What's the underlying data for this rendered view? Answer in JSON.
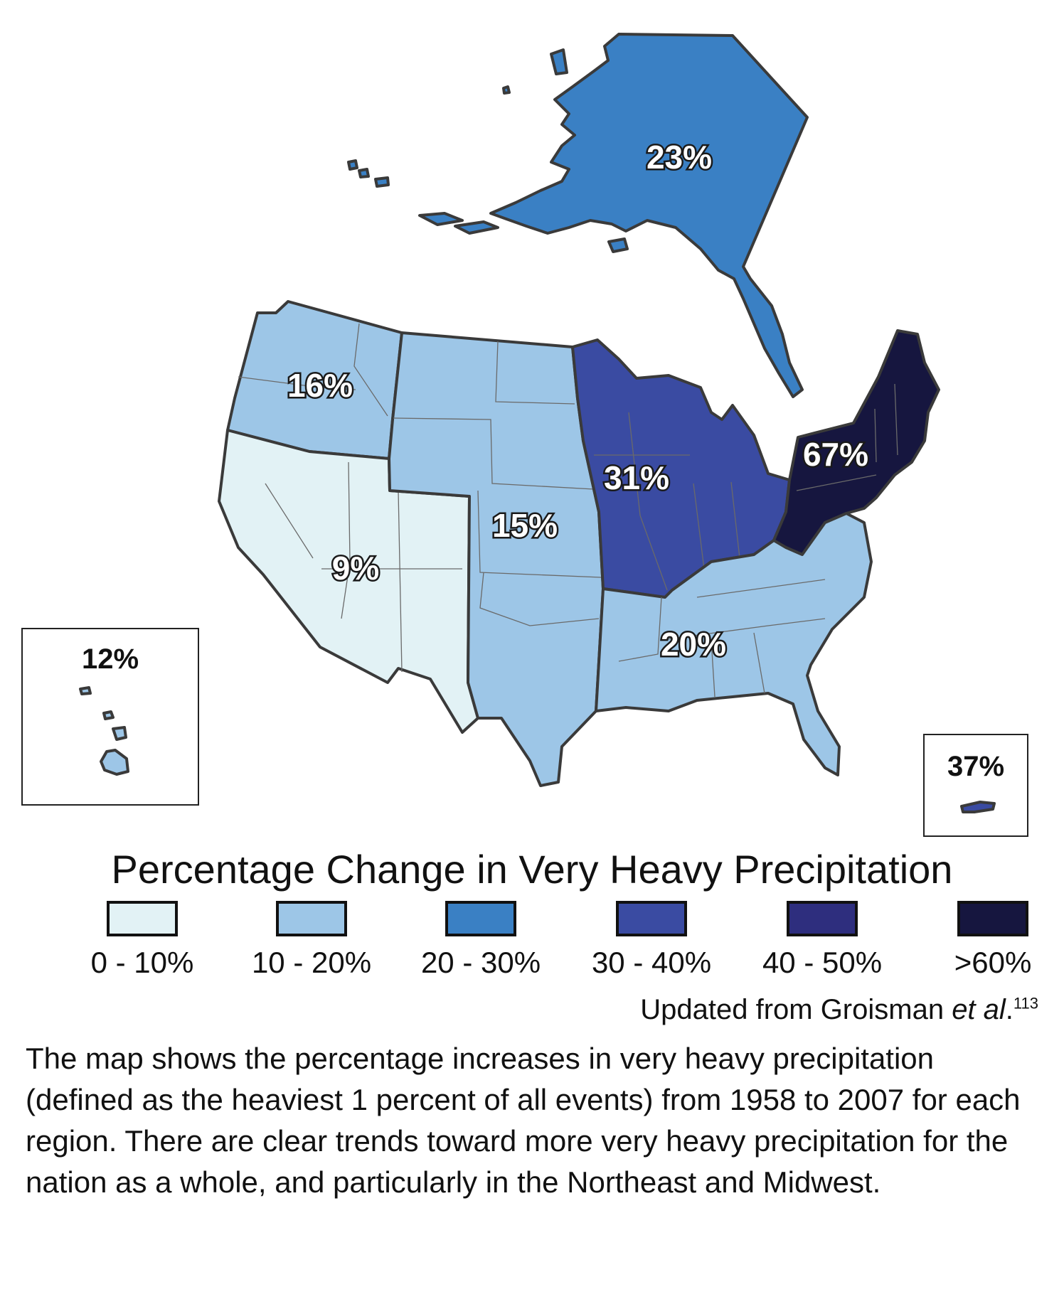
{
  "map": {
    "regions": [
      {
        "name": "Alaska",
        "label": "23%",
        "value_pct": 23,
        "bin": 2
      },
      {
        "name": "Northwest",
        "label": "16%",
        "value_pct": 16,
        "bin": 1
      },
      {
        "name": "Southwest",
        "label": "9%",
        "value_pct": 9,
        "bin": 0
      },
      {
        "name": "Great Plains",
        "label": "15%",
        "value_pct": 15,
        "bin": 1
      },
      {
        "name": "Midwest",
        "label": "31%",
        "value_pct": 31,
        "bin": 3
      },
      {
        "name": "Northeast",
        "label": "67%",
        "value_pct": 67,
        "bin": 5
      },
      {
        "name": "Southeast",
        "label": "20%",
        "value_pct": 20,
        "bin": 1
      },
      {
        "name": "Hawaii",
        "label": "12%",
        "value_pct": 12,
        "bin": 1
      },
      {
        "name": "Puerto Rico",
        "label": "37%",
        "value_pct": 37,
        "bin": 3
      }
    ]
  },
  "legend": {
    "title": "Percentage Change in Very Heavy Precipitation",
    "bins": [
      {
        "label": "0 - 10%",
        "color": "#e2f2f5"
      },
      {
        "label": "10 - 20%",
        "color": "#9dc6e7"
      },
      {
        "label": "20 - 30%",
        "color": "#3a80c4"
      },
      {
        "label": "30 - 40%",
        "color": "#3a4ba2"
      },
      {
        "label": "40 - 50%",
        "color": "#2e2e7e"
      },
      {
        "label": ">60%",
        "color": "#16163f"
      }
    ]
  },
  "credit": {
    "prefix": "Updated from Groisman ",
    "italic": "et al",
    "suffix": ".",
    "ref": "113"
  },
  "caption": "The map shows the percentage increases in very heavy precipitation (defined as the heaviest 1 percent of all events) from 1958 to 2007 for each region. There are clear trends toward more very heavy precipitation for the nation as a whole, and particularly in the Northeast and Midwest."
}
